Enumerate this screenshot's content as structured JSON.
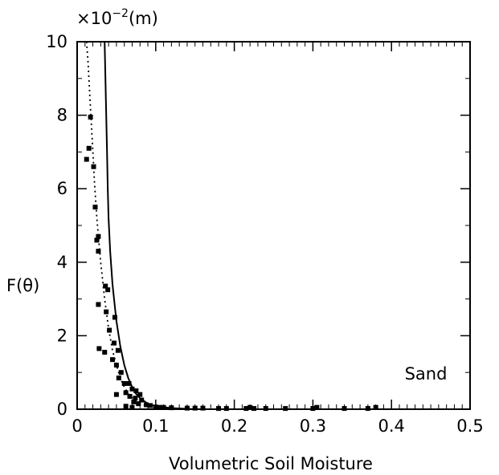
{
  "chart_data": {
    "type": "scatter",
    "title": "",
    "xlabel": "Volumetric Soil Moisture",
    "ylabel": "F(θ)",
    "y_multiplier": "×10",
    "y_exponent": "−2",
    "y_unit": "(m)",
    "annotation": "Sand",
    "xlim": [
      0,
      0.5
    ],
    "ylim": [
      0,
      10
    ],
    "xticks": [
      0,
      0.1,
      0.2,
      0.3,
      0.4,
      0.5
    ],
    "xtick_labels": [
      "0",
      "0.1",
      "0.2",
      "0.3",
      "0.4",
      "0.5"
    ],
    "yticks": [
      0,
      2,
      4,
      6,
      8,
      10
    ],
    "ytick_labels": [
      "0",
      "2",
      "4",
      "6",
      "8",
      "10"
    ],
    "grid": false,
    "legend": "none",
    "series": [
      {
        "style": "markers",
        "points": [
          [
            0.017,
            7.95
          ],
          [
            0.015,
            7.1
          ],
          [
            0.012,
            6.8
          ],
          [
            0.021,
            6.6
          ],
          [
            0.023,
            5.5
          ],
          [
            0.027,
            4.7
          ],
          [
            0.025,
            4.6
          ],
          [
            0.027,
            4.3
          ],
          [
            0.036,
            3.35
          ],
          [
            0.039,
            3.25
          ],
          [
            0.027,
            2.85
          ],
          [
            0.037,
            2.65
          ],
          [
            0.048,
            2.5
          ],
          [
            0.041,
            2.15
          ],
          [
            0.028,
            1.65
          ],
          [
            0.035,
            1.55
          ],
          [
            0.047,
            1.8
          ],
          [
            0.052,
            1.6
          ],
          [
            0.045,
            1.35
          ],
          [
            0.05,
            1.2
          ],
          [
            0.056,
            1.0
          ],
          [
            0.053,
            0.85
          ],
          [
            0.06,
            0.7
          ],
          [
            0.066,
            0.7
          ],
          [
            0.07,
            0.55
          ],
          [
            0.062,
            0.45
          ],
          [
            0.075,
            0.5
          ],
          [
            0.05,
            0.4
          ],
          [
            0.08,
            0.4
          ],
          [
            0.067,
            0.35
          ],
          [
            0.074,
            0.3
          ],
          [
            0.082,
            0.25
          ],
          [
            0.072,
            0.2
          ],
          [
            0.078,
            0.15
          ],
          [
            0.088,
            0.12
          ],
          [
            0.093,
            0.1
          ],
          [
            0.062,
            0.08
          ],
          [
            0.07,
            0.05
          ],
          [
            0.1,
            0.06
          ],
          [
            0.105,
            0.05
          ],
          [
            0.11,
            0.05
          ],
          [
            0.12,
            0.04
          ],
          [
            0.14,
            0.03
          ],
          [
            0.15,
            0.03
          ],
          [
            0.16,
            0.03
          ],
          [
            0.18,
            0.02
          ],
          [
            0.19,
            0.02
          ],
          [
            0.215,
            0.02
          ],
          [
            0.22,
            0.05
          ],
          [
            0.225,
            0.02
          ],
          [
            0.24,
            0.02
          ],
          [
            0.265,
            0.02
          ],
          [
            0.3,
            0.02
          ],
          [
            0.305,
            0.05
          ],
          [
            0.34,
            0.02
          ],
          [
            0.37,
            0.02
          ],
          [
            0.38,
            0.05
          ]
        ]
      },
      {
        "style": "dotted-line",
        "points": [
          [
            0.012,
            10.0
          ],
          [
            0.014,
            9.4
          ],
          [
            0.016,
            8.6
          ],
          [
            0.018,
            7.8
          ],
          [
            0.02,
            7.0
          ],
          [
            0.022,
            6.2
          ],
          [
            0.025,
            5.2
          ],
          [
            0.03,
            4.0
          ],
          [
            0.035,
            3.0
          ],
          [
            0.04,
            2.2
          ],
          [
            0.045,
            1.6
          ],
          [
            0.05,
            1.2
          ],
          [
            0.055,
            0.85
          ],
          [
            0.06,
            0.6
          ],
          [
            0.065,
            0.42
          ],
          [
            0.07,
            0.3
          ],
          [
            0.08,
            0.16
          ],
          [
            0.09,
            0.08
          ],
          [
            0.1,
            0.04
          ],
          [
            0.12,
            0.015
          ],
          [
            0.15,
            0.0
          ],
          [
            0.5,
            0.0
          ]
        ]
      },
      {
        "style": "solid-line",
        "points": [
          [
            0.035,
            10.0
          ],
          [
            0.036,
            9.0
          ],
          [
            0.037,
            8.0
          ],
          [
            0.038,
            7.0
          ],
          [
            0.039,
            6.0
          ],
          [
            0.04,
            5.2
          ],
          [
            0.042,
            4.3
          ],
          [
            0.045,
            3.4
          ],
          [
            0.048,
            2.8
          ],
          [
            0.05,
            2.4
          ],
          [
            0.055,
            1.7
          ],
          [
            0.06,
            1.2
          ],
          [
            0.065,
            0.85
          ],
          [
            0.07,
            0.6
          ],
          [
            0.075,
            0.42
          ],
          [
            0.08,
            0.3
          ],
          [
            0.09,
            0.15
          ],
          [
            0.1,
            0.08
          ],
          [
            0.12,
            0.03
          ],
          [
            0.15,
            0.0
          ],
          [
            0.5,
            0.0
          ]
        ]
      }
    ]
  }
}
